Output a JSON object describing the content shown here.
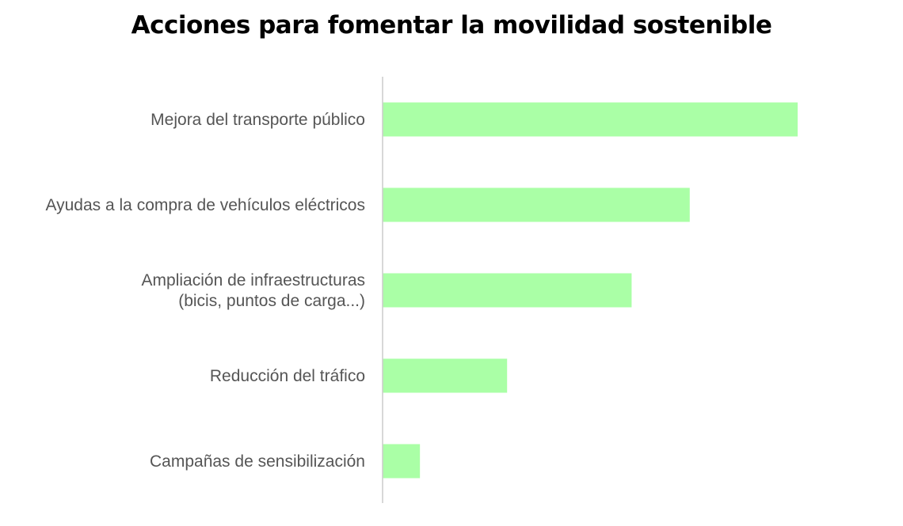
{
  "chart_data": {
    "type": "bar",
    "orientation": "horizontal",
    "title": "Acciones para fomentar la movilidad sostenible",
    "categories": [
      [
        "Mejora del transporte público"
      ],
      [
        "Ayudas a la compra de vehículos eléctricos"
      ],
      [
        "Ampliación de infraestructuras",
        "(bicis, puntos de carga...)"
      ],
      [
        "Reducción del tráfico"
      ],
      [
        "Campañas de sensibilización"
      ]
    ],
    "values": [
      100,
      74,
      60,
      30,
      9
    ],
    "xlim": [
      0,
      100
    ],
    "xlabel": "",
    "ylabel": "",
    "grid": false,
    "legend": "none",
    "bar_color": "#aaffa6",
    "axis_color": "#cccccc"
  }
}
